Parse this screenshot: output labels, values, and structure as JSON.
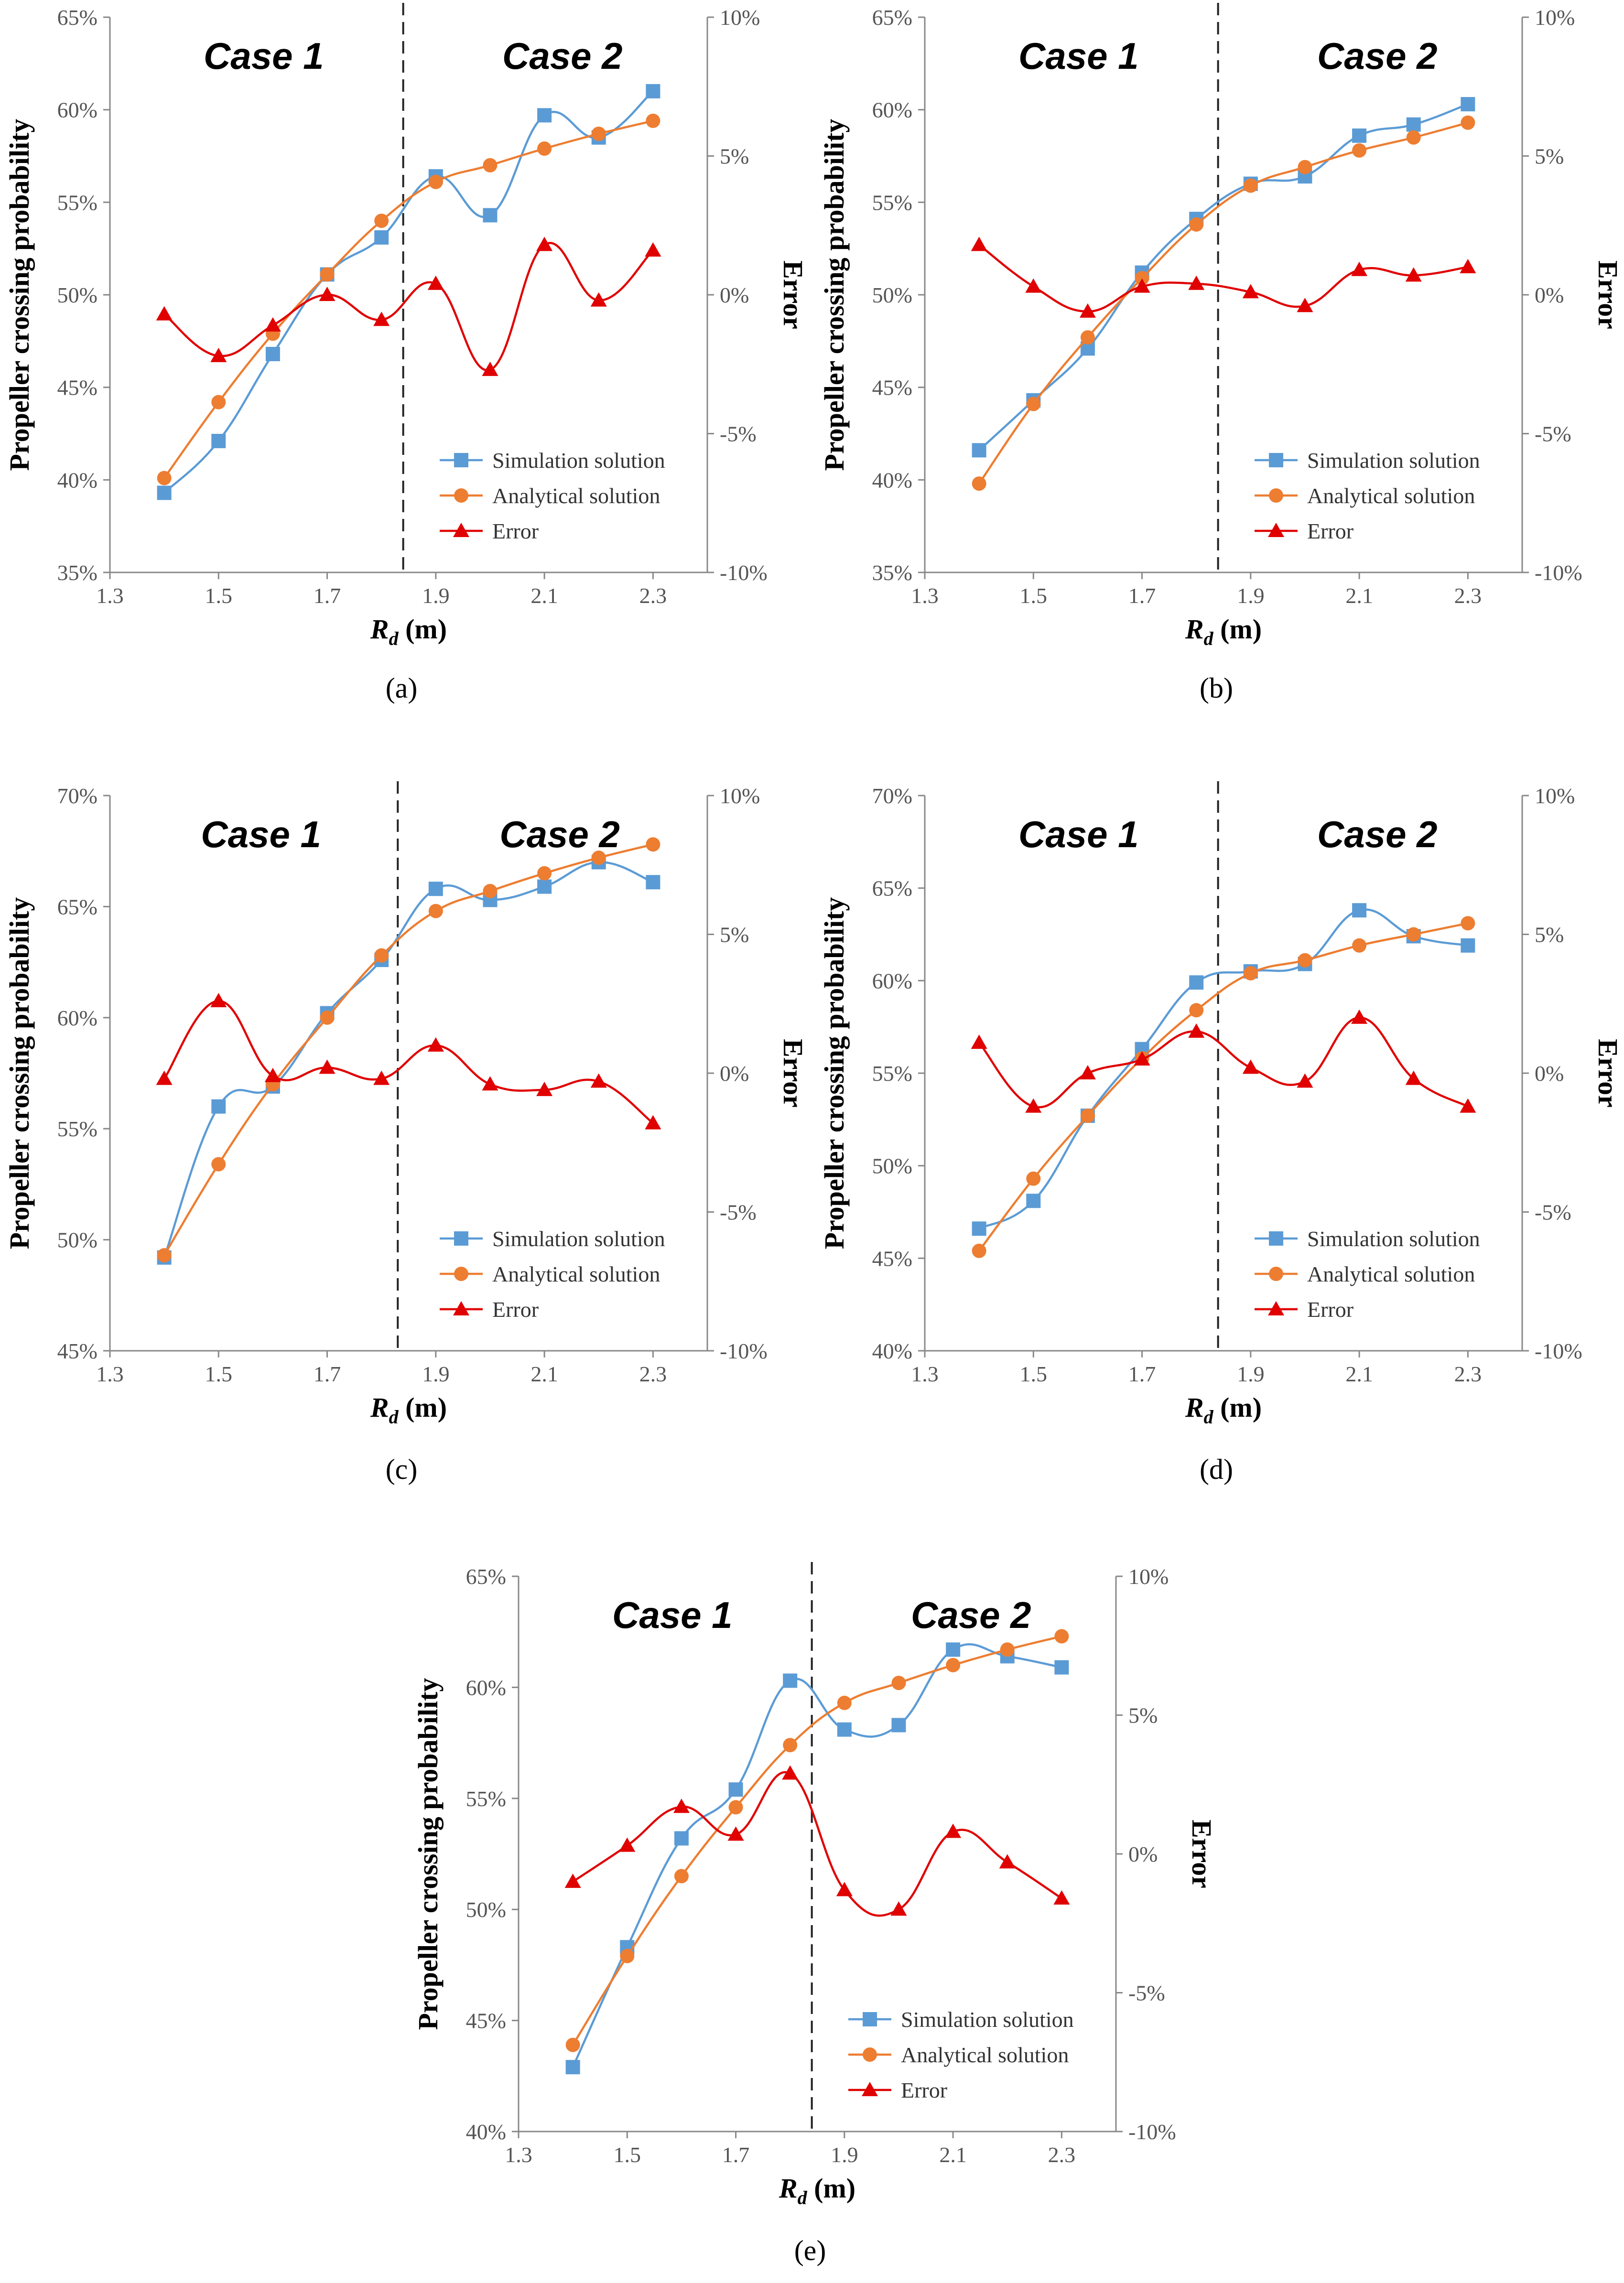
{
  "figure": {
    "panel_labels": [
      "(a)",
      "(b)",
      "(c)",
      "(d)",
      "(e)"
    ]
  },
  "colors": {
    "simulation": "#5B9BD5",
    "analytical": "#ED7D31",
    "error": "#E00000",
    "axis": "#888888",
    "divider": "#222222"
  },
  "chart_data": [
    {
      "panel": "(a)",
      "type": "line",
      "x": [
        1.4,
        1.5,
        1.6,
        1.7,
        1.8,
        1.9,
        2.0,
        2.1,
        2.2,
        2.3
      ],
      "xlim": [
        1.3,
        2.4
      ],
      "xticks": [
        1.3,
        1.5,
        1.7,
        1.9,
        2.1,
        2.3
      ],
      "xtick_labels": [
        "1.3",
        "1.5",
        "1.7",
        "1.9",
        "2.1",
        "2.3"
      ],
      "xlabel": "R",
      "xlabel_sub": "d",
      "xlabel_unit": " (m)",
      "ylabel": "Propeller crossing probability",
      "ylim": [
        35,
        65
      ],
      "yticks": [
        35,
        40,
        45,
        50,
        55,
        60,
        65
      ],
      "ytick_labels": [
        "35%",
        "40%",
        "45%",
        "50%",
        "55%",
        "60%",
        "65%"
      ],
      "y2label": "Error",
      "y2lim": [
        -10,
        10
      ],
      "y2ticks": [
        -10,
        -5,
        0,
        5,
        10
      ],
      "y2tick_labels": [
        "-10%",
        "-5%",
        "0%",
        "5%",
        "10%"
      ],
      "divider_x": 1.84,
      "case_labels": [
        "Case 1",
        "Case 2"
      ],
      "legend": [
        "Simulation solution",
        "Analytical solution",
        "Error"
      ],
      "series": [
        {
          "name": "Simulation solution",
          "axis": "left",
          "marker": "square",
          "values": [
            39.3,
            42.1,
            46.8,
            51.1,
            53.1,
            56.4,
            54.3,
            59.7,
            58.5,
            61.0
          ]
        },
        {
          "name": "Analytical solution",
          "axis": "left",
          "marker": "circle",
          "values": [
            40.1,
            44.2,
            47.9,
            51.1,
            54.0,
            56.1,
            57.0,
            57.9,
            58.7,
            59.4
          ]
        },
        {
          "name": "Error",
          "axis": "right",
          "marker": "triangle",
          "values": [
            -0.7,
            -2.2,
            -1.1,
            0.0,
            -0.9,
            0.4,
            -2.7,
            1.8,
            -0.2,
            1.6
          ]
        }
      ]
    },
    {
      "panel": "(b)",
      "type": "line",
      "x": [
        1.4,
        1.5,
        1.6,
        1.7,
        1.8,
        1.9,
        2.0,
        2.1,
        2.2,
        2.3
      ],
      "xlim": [
        1.3,
        2.4
      ],
      "xticks": [
        1.3,
        1.5,
        1.7,
        1.9,
        2.1,
        2.3
      ],
      "xtick_labels": [
        "1.3",
        "1.5",
        "1.7",
        "1.9",
        "2.1",
        "2.3"
      ],
      "xlabel": "R",
      "xlabel_sub": "d",
      "xlabel_unit": " (m)",
      "ylabel": "Propeller crossing probability",
      "ylim": [
        35,
        65
      ],
      "yticks": [
        35,
        40,
        45,
        50,
        55,
        60,
        65
      ],
      "ytick_labels": [
        "35%",
        "40%",
        "45%",
        "50%",
        "55%",
        "60%",
        "65%"
      ],
      "y2label": "Error",
      "y2lim": [
        -10,
        10
      ],
      "y2ticks": [
        -10,
        -5,
        0,
        5,
        10
      ],
      "y2tick_labels": [
        "-10%",
        "-5%",
        "0%",
        "5%",
        "10%"
      ],
      "divider_x": 1.84,
      "case_labels": [
        "Case 1",
        "Case 2"
      ],
      "legend": [
        "Simulation solution",
        "Analytical solution",
        "Error"
      ],
      "series": [
        {
          "name": "Simulation solution",
          "axis": "left",
          "marker": "square",
          "values": [
            41.6,
            44.3,
            47.1,
            51.2,
            54.1,
            56.0,
            56.4,
            58.6,
            59.2,
            60.3
          ]
        },
        {
          "name": "Analytical solution",
          "axis": "left",
          "marker": "circle",
          "values": [
            39.8,
            44.1,
            47.7,
            50.9,
            53.8,
            55.9,
            56.9,
            57.8,
            58.5,
            59.3
          ]
        },
        {
          "name": "Error",
          "axis": "right",
          "marker": "triangle",
          "values": [
            1.8,
            0.3,
            -0.6,
            0.3,
            0.4,
            0.1,
            -0.4,
            0.9,
            0.7,
            1.0
          ]
        }
      ]
    },
    {
      "panel": "(c)",
      "type": "line",
      "x": [
        1.4,
        1.5,
        1.6,
        1.7,
        1.8,
        1.9,
        2.0,
        2.1,
        2.2,
        2.3
      ],
      "xlim": [
        1.3,
        2.4
      ],
      "xticks": [
        1.3,
        1.5,
        1.7,
        1.9,
        2.1,
        2.3
      ],
      "xtick_labels": [
        "1.3",
        "1.5",
        "1.7",
        "1.9",
        "2.1",
        "2.3"
      ],
      "xlabel": "R",
      "xlabel_sub": "d",
      "xlabel_unit": " (m)",
      "ylabel": "Propeller crossing probability",
      "ylim": [
        45,
        70
      ],
      "yticks": [
        45,
        50,
        55,
        60,
        65,
        70
      ],
      "ytick_labels": [
        "45%",
        "50%",
        "55%",
        "60%",
        "65%",
        "70%"
      ],
      "y2label": "Error",
      "y2lim": [
        -10,
        10
      ],
      "y2ticks": [
        -10,
        -5,
        0,
        5,
        10
      ],
      "y2tick_labels": [
        "-10%",
        "-5%",
        "0%",
        "5%",
        "10%"
      ],
      "divider_x": 1.83,
      "case_labels": [
        "Case 1",
        "Case 2"
      ],
      "legend": [
        "Simulation solution",
        "Analytical solution",
        "Error"
      ],
      "series": [
        {
          "name": "Simulation solution",
          "axis": "left",
          "marker": "square",
          "values": [
            49.2,
            56.0,
            56.9,
            60.2,
            62.6,
            65.8,
            65.3,
            65.9,
            67.0,
            66.1
          ]
        },
        {
          "name": "Analytical solution",
          "axis": "left",
          "marker": "circle",
          "values": [
            49.3,
            53.4,
            57.0,
            60.0,
            62.8,
            64.8,
            65.7,
            66.5,
            67.2,
            67.8
          ]
        },
        {
          "name": "Error",
          "axis": "right",
          "marker": "triangle",
          "values": [
            -0.2,
            2.6,
            -0.1,
            0.2,
            -0.2,
            1.0,
            -0.4,
            -0.6,
            -0.3,
            -1.8
          ]
        }
      ]
    },
    {
      "panel": "(d)",
      "type": "line",
      "x": [
        1.4,
        1.5,
        1.6,
        1.7,
        1.8,
        1.9,
        2.0,
        2.1,
        2.2,
        2.3
      ],
      "xlim": [
        1.3,
        2.4
      ],
      "xticks": [
        1.3,
        1.5,
        1.7,
        1.9,
        2.1,
        2.3
      ],
      "xtick_labels": [
        "1.3",
        "1.5",
        "1.7",
        "1.9",
        "2.1",
        "2.3"
      ],
      "xlabel": "R",
      "xlabel_sub": "d",
      "xlabel_unit": " (m)",
      "ylabel": "Propeller crossing probability",
      "ylim": [
        40,
        70
      ],
      "yticks": [
        40,
        45,
        50,
        55,
        60,
        65,
        70
      ],
      "ytick_labels": [
        "40%",
        "45%",
        "50%",
        "55%",
        "60%",
        "65%",
        "70%"
      ],
      "y2label": "Error",
      "y2lim": [
        -10,
        10
      ],
      "y2ticks": [
        -10,
        -5,
        0,
        5,
        10
      ],
      "y2tick_labels": [
        "-10%",
        "-5%",
        "0%",
        "5%",
        "10%"
      ],
      "divider_x": 1.84,
      "case_labels": [
        "Case 1",
        "Case 2"
      ],
      "legend": [
        "Simulation solution",
        "Analytical solution",
        "Error"
      ],
      "series": [
        {
          "name": "Simulation solution",
          "axis": "left",
          "marker": "square",
          "values": [
            46.6,
            48.1,
            52.7,
            56.3,
            59.9,
            60.5,
            60.9,
            63.8,
            62.4,
            61.9
          ]
        },
        {
          "name": "Analytical solution",
          "axis": "left",
          "marker": "circle",
          "values": [
            45.4,
            49.3,
            52.7,
            55.8,
            58.4,
            60.4,
            61.1,
            61.9,
            62.5,
            63.1
          ]
        },
        {
          "name": "Error",
          "axis": "right",
          "marker": "triangle",
          "values": [
            1.1,
            -1.2,
            0.0,
            0.5,
            1.5,
            0.2,
            -0.3,
            2.0,
            -0.2,
            -1.2
          ]
        }
      ]
    },
    {
      "panel": "(e)",
      "type": "line",
      "x": [
        1.4,
        1.5,
        1.6,
        1.7,
        1.8,
        1.9,
        2.0,
        2.1,
        2.2,
        2.3
      ],
      "xlim": [
        1.3,
        2.4
      ],
      "xticks": [
        1.3,
        1.5,
        1.7,
        1.9,
        2.1,
        2.3
      ],
      "xtick_labels": [
        "1.3",
        "1.5",
        "1.7",
        "1.9",
        "2.1",
        "2.3"
      ],
      "xlabel": "R",
      "xlabel_sub": "d",
      "xlabel_unit": " (m)",
      "ylabel": "Propeller crossing probability",
      "ylim": [
        40,
        65
      ],
      "yticks": [
        40,
        45,
        50,
        55,
        60,
        65
      ],
      "ytick_labels": [
        "40%",
        "45%",
        "50%",
        "55%",
        "60%",
        "65%"
      ],
      "y2label": "Error",
      "y2lim": [
        -10,
        10
      ],
      "y2ticks": [
        -10,
        -5,
        0,
        5,
        10
      ],
      "y2tick_labels": [
        "-10%",
        "-5%",
        "0%",
        "5%",
        "10%"
      ],
      "divider_x": 1.84,
      "case_labels": [
        "Case 1",
        "Case 2"
      ],
      "legend": [
        "Simulation solution",
        "Analytical solution",
        "Error"
      ],
      "series": [
        {
          "name": "Simulation solution",
          "axis": "left",
          "marker": "square",
          "values": [
            42.9,
            48.3,
            53.2,
            55.4,
            60.3,
            58.1,
            58.3,
            61.7,
            61.4,
            60.9
          ]
        },
        {
          "name": "Analytical solution",
          "axis": "left",
          "marker": "circle",
          "values": [
            43.9,
            47.9,
            51.5,
            54.6,
            57.4,
            59.3,
            60.2,
            61.0,
            61.7,
            62.3
          ]
        },
        {
          "name": "Error",
          "axis": "right",
          "marker": "triangle",
          "values": [
            -1.0,
            0.3,
            1.7,
            0.7,
            2.9,
            -1.3,
            -2.0,
            0.8,
            -0.3,
            -1.6
          ]
        }
      ]
    }
  ]
}
